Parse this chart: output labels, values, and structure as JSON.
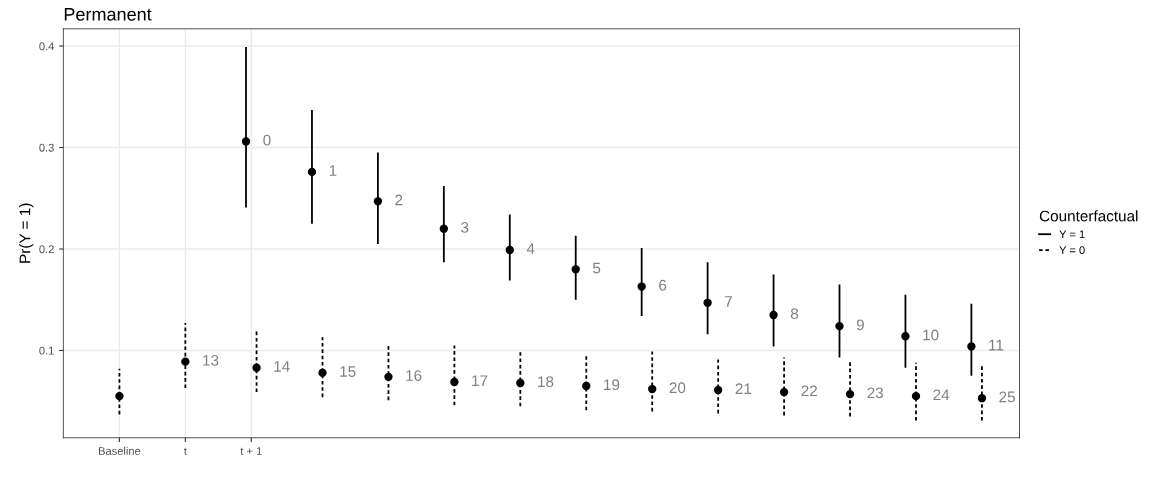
{
  "chart_data": {
    "type": "scatter",
    "title": "Permanent",
    "ylabel": "Pr(Y = 1)",
    "legend_title": "Counterfactual",
    "legend": "right",
    "grid": true,
    "marker": "circle",
    "categories": [
      "Baseline",
      "t",
      "t + 1",
      null,
      null,
      null,
      null,
      null,
      null,
      null,
      null,
      null,
      null,
      null
    ],
    "ylim": [
      0.014,
      0.417
    ],
    "yticks": [
      0.1,
      0.2,
      0.3,
      0.4
    ],
    "series": [
      {
        "name": "Y = 1",
        "color": "#000000",
        "line_style": "solid",
        "values": [
          null,
          null,
          0.306,
          0.276,
          0.247,
          0.22,
          0.199,
          0.18,
          0.163,
          0.147,
          0.135,
          0.124,
          0.114,
          0.104
        ],
        "errors": [
          null,
          null,
          [
            0.241,
            0.399
          ],
          [
            0.225,
            0.337
          ],
          [
            0.205,
            0.295
          ],
          [
            0.187,
            0.262
          ],
          [
            0.169,
            0.234
          ],
          [
            0.15,
            0.213
          ],
          [
            0.134,
            0.201
          ],
          [
            0.116,
            0.187
          ],
          [
            0.104,
            0.175
          ],
          [
            0.093,
            0.165
          ],
          [
            0.083,
            0.155
          ],
          [
            0.075,
            0.146
          ]
        ]
      },
      {
        "name": "Y = 0",
        "color": "#000000",
        "line_style": "dotted",
        "values": [
          0.055,
          0.089,
          0.083,
          0.078,
          0.074,
          0.069,
          0.068,
          0.065,
          0.062,
          0.061,
          0.059,
          0.057,
          0.055,
          0.053
        ],
        "errors": [
          [
            0.037,
            0.082
          ],
          [
            0.063,
            0.127
          ],
          [
            0.059,
            0.121
          ],
          [
            0.054,
            0.113
          ],
          [
            0.051,
            0.105
          ],
          [
            0.046,
            0.105
          ],
          [
            0.045,
            0.099
          ],
          [
            0.041,
            0.096
          ],
          [
            0.04,
            0.099
          ],
          [
            0.038,
            0.091
          ],
          [
            0.036,
            0.093
          ],
          [
            0.035,
            0.089
          ],
          [
            0.031,
            0.088
          ],
          [
            0.031,
            0.085
          ]
        ]
      }
    ],
    "annotations": [
      "13",
      "0",
      "14",
      "1",
      "15",
      "2",
      "16",
      "3",
      "17",
      "4",
      "18",
      "5",
      "19",
      "6",
      "20",
      "7",
      "21",
      "8",
      "22",
      "9",
      "23",
      "10",
      "24",
      "11",
      "25"
    ]
  }
}
